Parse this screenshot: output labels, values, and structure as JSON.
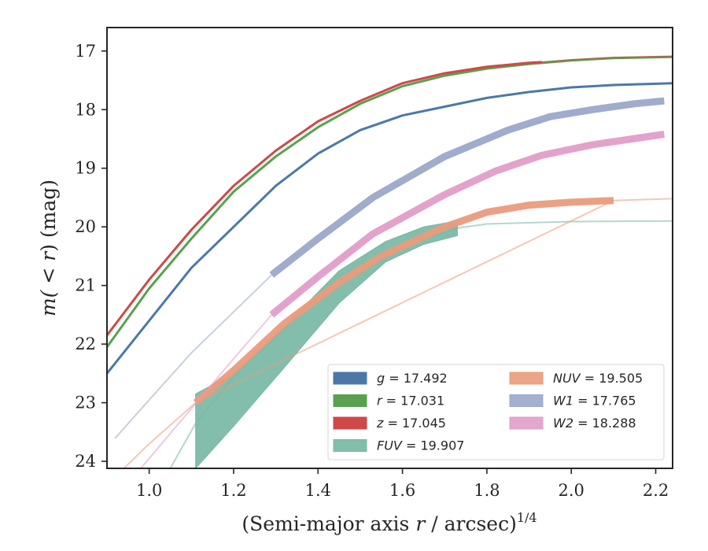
{
  "chart_data": {
    "type": "line",
    "xlabel_main": "(Semi-major axis ",
    "xlabel_var": "r",
    "xlabel_tail": " / arcsec)",
    "xlabel_exp": "1/4",
    "ylabel_main": "m(",
    "ylabel_cmp": " < ",
    "ylabel_var": "r",
    "ylabel_tail": ") (mag)",
    "xlim": [
      0.9,
      2.24
    ],
    "ylim": [
      16.6,
      24.12
    ],
    "y_inverted": true,
    "xticks": [
      1.0,
      1.2,
      1.4,
      1.6,
      1.8,
      2.0,
      2.2
    ],
    "xtick_labels": [
      "1.0",
      "1.2",
      "1.4",
      "1.6",
      "1.8",
      "2.0",
      "2.2"
    ],
    "yticks": [
      17,
      18,
      19,
      20,
      21,
      22,
      23,
      24
    ],
    "ytick_labels": [
      "17",
      "18",
      "19",
      "20",
      "21",
      "22",
      "23",
      "24"
    ],
    "grid": false,
    "legend_position": "lower-right",
    "series": [
      {
        "key": "g",
        "name": "g = 17.492",
        "color": "#4c78a8",
        "style": "line",
        "x": [
          0.9,
          1.0,
          1.1,
          1.2,
          1.3,
          1.4,
          1.5,
          1.6,
          1.7,
          1.8,
          1.9,
          2.0,
          2.1,
          2.24
        ],
        "y": [
          22.5,
          21.6,
          20.7,
          20.0,
          19.3,
          18.75,
          18.35,
          18.1,
          17.95,
          17.8,
          17.7,
          17.62,
          17.58,
          17.55
        ],
        "faint_x": [],
        "faint_y": []
      },
      {
        "key": "r",
        "name": "r = 17.031",
        "color": "#59a14f",
        "style": "line",
        "x": [
          0.9,
          1.0,
          1.1,
          1.2,
          1.3,
          1.4,
          1.5,
          1.6,
          1.7,
          1.8,
          1.9,
          2.0,
          2.1,
          2.24
        ],
        "y": [
          22.05,
          21.05,
          20.2,
          19.4,
          18.8,
          18.3,
          17.9,
          17.6,
          17.42,
          17.3,
          17.22,
          17.16,
          17.12,
          17.1
        ],
        "faint_x": [],
        "faint_y": []
      },
      {
        "key": "z",
        "name": "z = 17.045",
        "color": "#d04848",
        "style": "line",
        "x": [
          0.9,
          1.0,
          1.1,
          1.2,
          1.3,
          1.4,
          1.5,
          1.6,
          1.7,
          1.8,
          1.9,
          1.93
        ],
        "y": [
          21.85,
          20.9,
          20.05,
          19.3,
          18.7,
          18.2,
          17.85,
          17.55,
          17.38,
          17.27,
          17.2,
          17.19
        ],
        "faint_x": [
          1.93,
          2.0,
          2.1,
          2.24
        ],
        "faint_y": [
          17.19,
          17.15,
          17.11,
          17.09
        ]
      },
      {
        "key": "FUV",
        "name": "FUV = 19.907",
        "color": "#76b7a3",
        "style": "band",
        "x": [
          1.11,
          1.2,
          1.32,
          1.45,
          1.56,
          1.65,
          1.73
        ],
        "y_upper": [
          22.85,
          22.5,
          21.7,
          20.75,
          20.25,
          20.0,
          19.9
        ],
        "y_lower": [
          24.12,
          23.4,
          22.4,
          21.3,
          20.6,
          20.3,
          20.15
        ],
        "faint_x": [
          1.05,
          1.11,
          1.2,
          1.4,
          1.6,
          1.73,
          1.8,
          2.0,
          2.24
        ],
        "faint_y": [
          24.12,
          23.35,
          22.55,
          21.2,
          20.35,
          20.02,
          19.95,
          19.91,
          19.9
        ]
      },
      {
        "key": "NUV",
        "name": "NUV = 19.505",
        "color": "#ea9b7c",
        "style": "thick",
        "x": [
          1.11,
          1.2,
          1.32,
          1.45,
          1.55,
          1.7,
          1.8,
          1.9,
          2.0,
          2.1
        ],
        "y": [
          23.0,
          22.45,
          21.65,
          20.95,
          20.5,
          20.0,
          19.75,
          19.63,
          19.58,
          19.55
        ],
        "faint_x": [
          0.94,
          1.0,
          1.11,
          2.1,
          2.24
        ],
        "faint_y": [
          24.12,
          23.7,
          23.0,
          19.55,
          19.52
        ]
      },
      {
        "key": "W1",
        "name": "W1 = 17.765",
        "color": "#9aa8c9",
        "style": "thick",
        "x": [
          1.29,
          1.4,
          1.53,
          1.7,
          1.85,
          1.95,
          2.05,
          2.15,
          2.22
        ],
        "y": [
          20.82,
          20.2,
          19.5,
          18.8,
          18.35,
          18.12,
          18.0,
          17.9,
          17.85
        ],
        "faint_x": [
          0.92,
          1.0,
          1.1,
          1.2,
          1.29
        ],
        "faint_y": [
          23.6,
          22.95,
          22.15,
          21.45,
          20.82
        ]
      },
      {
        "key": "W2",
        "name": "W2 = 18.288",
        "color": "#e19dc9",
        "style": "thick",
        "x": [
          1.29,
          1.4,
          1.53,
          1.7,
          1.82,
          1.93,
          2.05,
          2.22
        ],
        "y": [
          21.5,
          20.85,
          20.12,
          19.45,
          19.05,
          18.78,
          18.6,
          18.42
        ],
        "faint_x": [
          0.98,
          1.1,
          1.2,
          1.29
        ],
        "faint_y": [
          24.12,
          23.1,
          22.25,
          21.5
        ]
      }
    ]
  }
}
